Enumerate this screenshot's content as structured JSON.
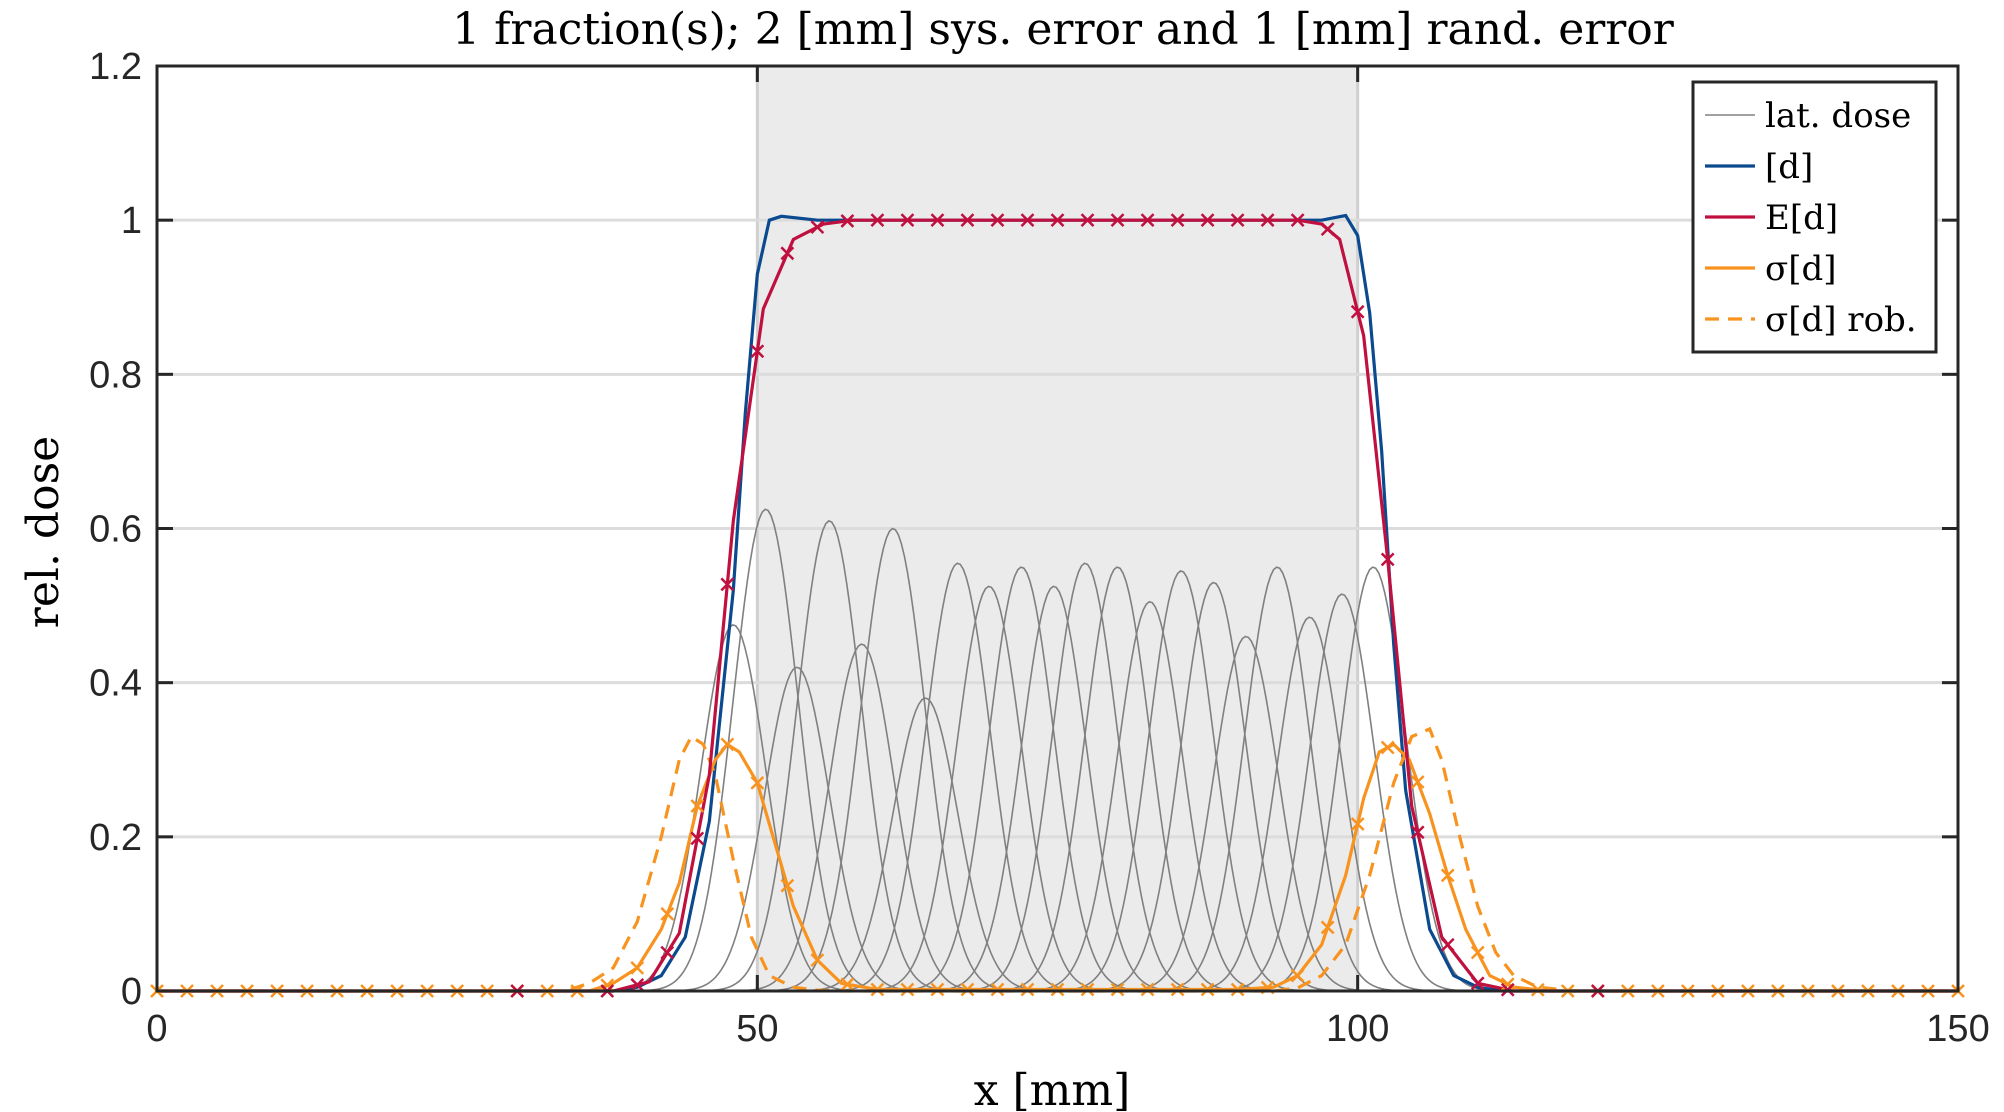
{
  "chart_data": {
    "type": "line",
    "title": "1 fraction(s); 2 [mm] sys. error and 1 [mm] rand. error",
    "xlabel": "x [mm]",
    "ylabel": "rel. dose",
    "xlim": [
      0,
      150
    ],
    "ylim": [
      0,
      1.2
    ],
    "x_ticks": [
      "0",
      "50",
      "100",
      "150"
    ],
    "y_ticks": [
      "0",
      "0.2",
      "0.4",
      "0.6",
      "0.8",
      "1",
      "1.2"
    ],
    "grid": "horizontal",
    "legend_position": "top-right",
    "target_region": [
      50,
      100
    ],
    "colors": {
      "lateral": "#808080",
      "nominal": "#0b4a8f",
      "expected": "#c0103f",
      "std": "#f7931e",
      "target": "#ebebeb"
    },
    "lateral_spots": {
      "sigma_mm": 2.7,
      "centers": [
        48.0,
        50.7,
        53.3,
        56.0,
        58.7,
        61.3,
        64.0,
        66.7,
        69.3,
        72.0,
        74.7,
        77.3,
        80.0,
        82.7,
        85.3,
        88.0,
        90.7,
        93.3,
        96.0,
        98.7,
        101.3
      ],
      "peaks": [
        0.475,
        0.625,
        0.42,
        0.61,
        0.45,
        0.6,
        0.38,
        0.555,
        0.525,
        0.55,
        0.525,
        0.555,
        0.55,
        0.505,
        0.545,
        0.53,
        0.46,
        0.55,
        0.485,
        0.515,
        0.55
      ]
    },
    "series": [
      {
        "name": "lat. dose",
        "style": "thin solid",
        "x": [
          0,
          38,
          50,
          100,
          112,
          150
        ],
        "y": [
          0,
          0,
          0.6,
          0.55,
          0,
          0
        ]
      },
      {
        "name": "[d]",
        "style": "solid",
        "x": [
          0,
          38,
          40,
          42,
          44,
          46,
          48,
          49,
          50,
          51,
          52,
          55,
          60,
          70,
          80,
          90,
          95,
          97,
          98,
          99,
          100,
          101,
          102,
          103,
          104,
          106,
          108,
          110,
          112,
          150
        ],
        "y": [
          0,
          0,
          0.005,
          0.02,
          0.07,
          0.22,
          0.52,
          0.75,
          0.93,
          1.0,
          1.005,
          1.0,
          1.0,
          1.0,
          1.0,
          1.0,
          1.0,
          1.0,
          1.003,
          1.006,
          0.98,
          0.88,
          0.7,
          0.45,
          0.26,
          0.08,
          0.02,
          0.005,
          0,
          0
        ]
      },
      {
        "name": "E[d]",
        "style": "solid with x markers",
        "x": [
          0,
          38,
          41,
          43.5,
          46,
          48,
          50.5,
          53,
          55.5,
          58,
          60.5,
          63,
          66,
          70,
          75,
          80,
          85,
          90,
          95,
          97,
          98.5,
          100.5,
          102.5,
          104.5,
          107,
          110,
          113,
          150
        ],
        "y": [
          0,
          0,
          0.012,
          0.075,
          0.28,
          0.61,
          0.885,
          0.975,
          0.995,
          1.0,
          1.0,
          1.0,
          1.0,
          1.0,
          1.0,
          1.0,
          1.0,
          1.0,
          1.0,
          0.995,
          0.975,
          0.85,
          0.56,
          0.24,
          0.07,
          0.01,
          0.0,
          0
        ]
      },
      {
        "name": "σ[d]",
        "style": "solid with x markers",
        "x": [
          0,
          36,
          38,
          40,
          42,
          43.5,
          45,
          46.5,
          47.5,
          48.5,
          50,
          51.5,
          53,
          55,
          57,
          60,
          90,
          93,
          95,
          97,
          99,
          100.5,
          101.8,
          103,
          104.3,
          106,
          107.5,
          109,
          111,
          113,
          116,
          150
        ],
        "y": [
          0,
          0,
          0.01,
          0.03,
          0.08,
          0.14,
          0.24,
          0.3,
          0.32,
          0.31,
          0.27,
          0.19,
          0.11,
          0.04,
          0.01,
          0.002,
          0.002,
          0.005,
          0.02,
          0.06,
          0.15,
          0.25,
          0.31,
          0.32,
          0.3,
          0.23,
          0.15,
          0.08,
          0.02,
          0.005,
          0,
          0
        ]
      },
      {
        "name": "σ[d] rob.",
        "style": "dashed",
        "x": [
          0,
          34,
          36,
          38,
          40,
          42,
          43.5,
          44.5,
          45.5,
          46.5,
          48,
          49.5,
          51,
          53,
          55,
          57,
          60,
          93,
          95,
          97,
          99,
          101,
          103,
          104.5,
          106,
          107,
          108.5,
          110,
          111.5,
          113,
          115,
          118,
          150
        ],
        "y": [
          0,
          0,
          0.01,
          0.03,
          0.09,
          0.2,
          0.3,
          0.33,
          0.32,
          0.28,
          0.17,
          0.07,
          0.02,
          0.005,
          0.001,
          0,
          0,
          0,
          0.004,
          0.02,
          0.06,
          0.15,
          0.27,
          0.33,
          0.34,
          0.3,
          0.2,
          0.11,
          0.05,
          0.02,
          0.005,
          0,
          0
        ]
      }
    ]
  }
}
